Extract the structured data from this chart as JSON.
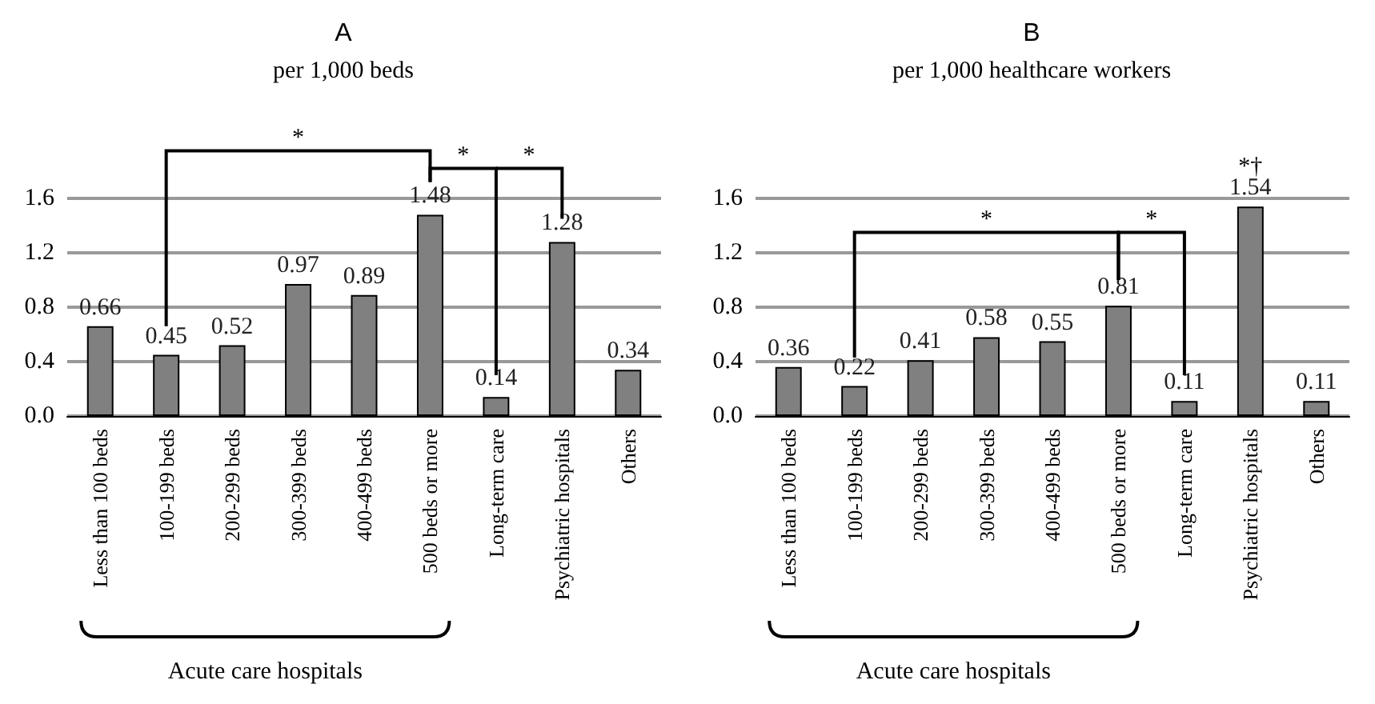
{
  "chart_data": [
    {
      "type": "bar",
      "title": "A",
      "subtitle": "per 1,000 beds",
      "categories": [
        "Less than 100 beds",
        "100-199 beds",
        "200-299 beds",
        "300-399 beds",
        "400-499 beds",
        "500 beds or more",
        "Long-term care",
        "Psychiatric hospitals",
        "Others"
      ],
      "values": [
        0.66,
        0.45,
        0.52,
        0.97,
        0.89,
        1.48,
        0.14,
        1.28,
        0.34
      ],
      "color": "#808080",
      "ylim": [
        0,
        1.6
      ],
      "yticks": [
        {
          "value": 0,
          "label": "0.0"
        },
        {
          "value": 0.4,
          "label": "0.4"
        },
        {
          "value": 0.8,
          "label": "0.8"
        },
        {
          "value": 1.2,
          "label": "1.2"
        },
        {
          "value": 1.6,
          "label": "1.6"
        }
      ],
      "grid": "y",
      "data_labels": true,
      "annotations": [
        "*",
        "*",
        "*",
        "Acute care hospitals"
      ]
    },
    {
      "type": "bar",
      "title": "B",
      "subtitle": "per 1,000 healthcare workers",
      "categories": [
        "Less than 100 beds",
        "100-199 beds",
        "200-299 beds",
        "300-399 beds",
        "400-499 beds",
        "500 beds or more",
        "Long-term care",
        "Psychiatric hospitals",
        "Others"
      ],
      "values": [
        0.36,
        0.22,
        0.41,
        0.58,
        0.55,
        0.81,
        0.11,
        1.54,
        0.11
      ],
      "color": "#808080",
      "ylim": [
        0,
        1.6
      ],
      "yticks": [
        {
          "value": 0,
          "label": "0.0"
        },
        {
          "value": 0.4,
          "label": "0.4"
        },
        {
          "value": 0.8,
          "label": "0.8"
        },
        {
          "value": 1.2,
          "label": "1.2"
        },
        {
          "value": 1.6,
          "label": "1.6"
        }
      ],
      "grid": "y",
      "data_labels": true,
      "annotations": [
        "*",
        "*",
        "*†",
        "Acute care hospitals"
      ]
    }
  ]
}
